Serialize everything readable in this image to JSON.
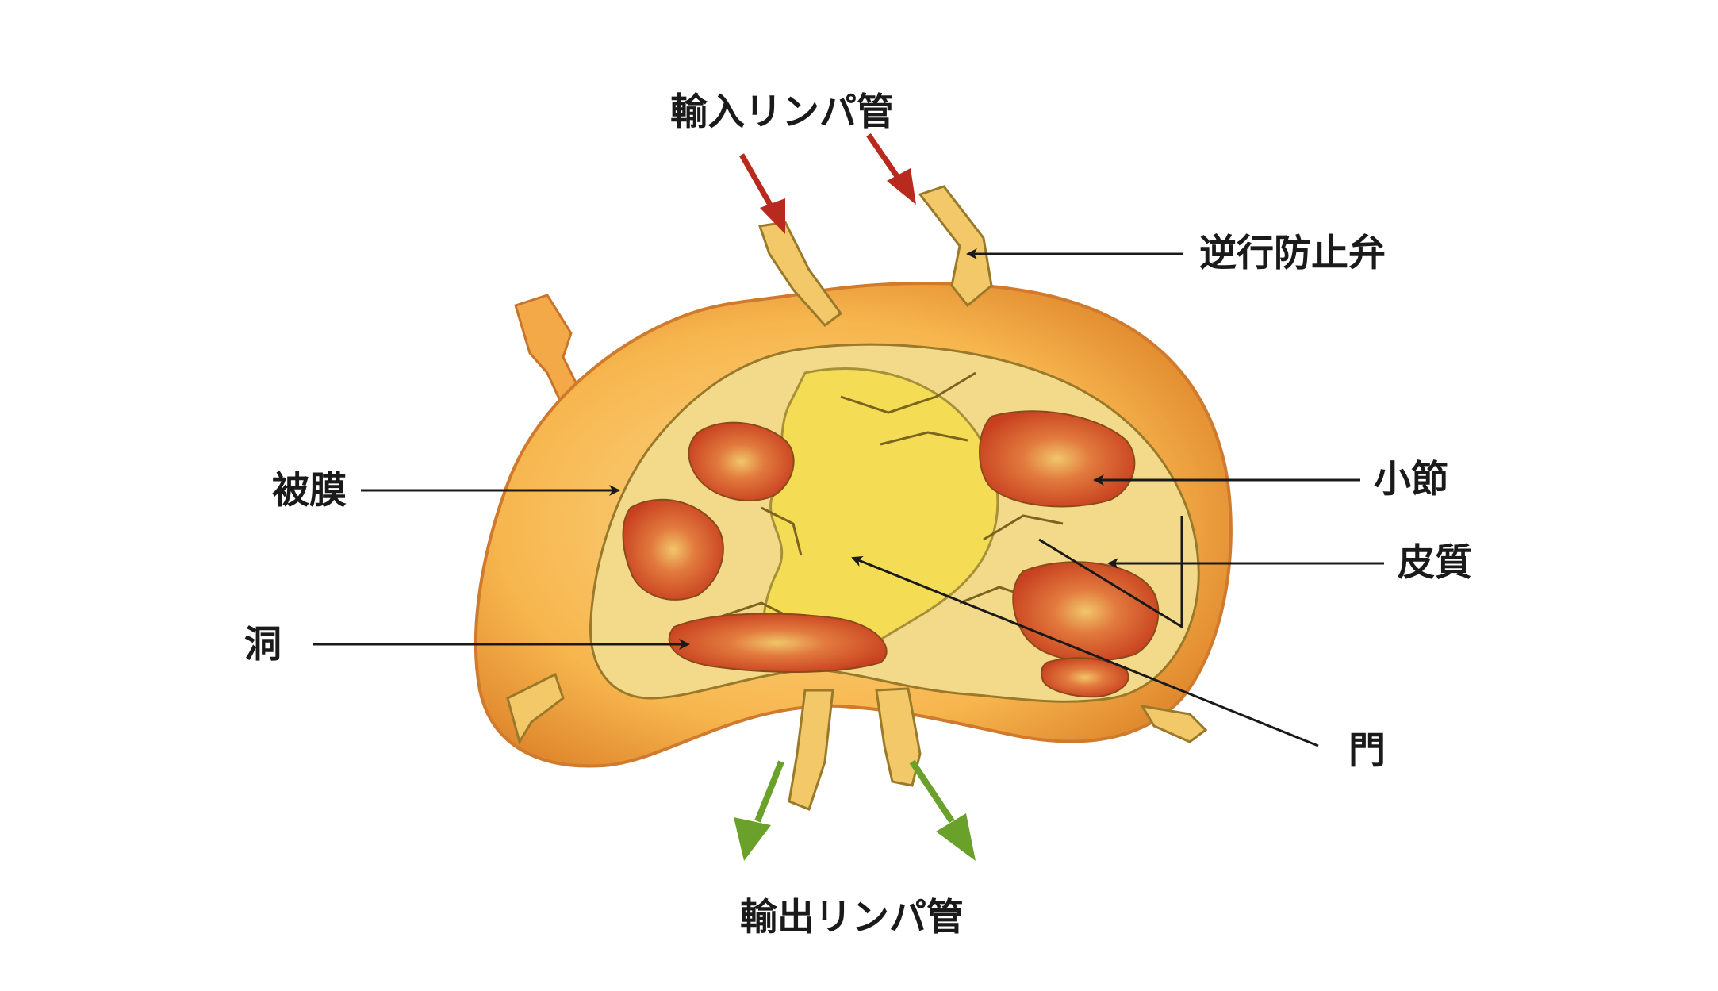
{
  "colors": {
    "background": "#ffffff",
    "capsule_outer": "#f7b64e",
    "capsule_edge": "#e0892e",
    "capsule_light": "#fbd98c",
    "medulla": "#f4dc54",
    "nodule": "#d8502a",
    "nodule_light": "#f1c66a",
    "leader": "#1a1a1a",
    "afferent_arrow": "#b82a1e",
    "efferent_arrow": "#6aa12a"
  },
  "labels": {
    "afferent": "輸入リンパ管",
    "valve": "逆行防止弁",
    "capsule": "被膜",
    "nodule": "小節",
    "cortex": "皮質",
    "sinus": "洞",
    "hilum": "門",
    "efferent": "輸出リンパ管"
  },
  "icons": {
    "afferent_flow": "arrow-down-right-icon",
    "efferent_flow": "arrow-down-icon"
  }
}
